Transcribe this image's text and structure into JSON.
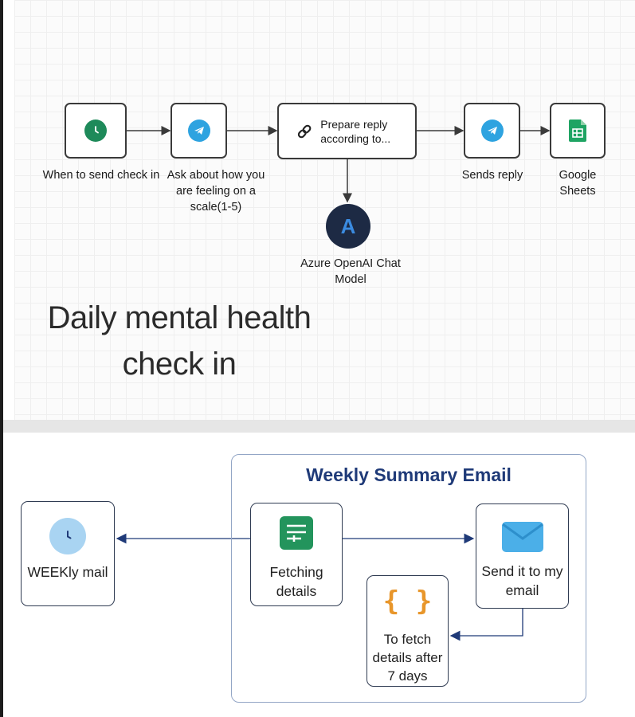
{
  "top_flow": {
    "nodes": {
      "schedule": {
        "label": "When to send check in",
        "icon": "clock-icon",
        "color": "#1e8a5a"
      },
      "ask": {
        "label": "Ask about how you are feeling on a scale(1-5)",
        "icon": "telegram-icon",
        "color": "#2ea3e0"
      },
      "prepare": {
        "label": "Prepare reply according to...",
        "icon": "link-icon"
      },
      "sends": {
        "label": "Sends reply",
        "icon": "telegram-icon",
        "color": "#2ea3e0"
      },
      "sheets": {
        "label": "Google Sheets",
        "icon": "sheets-icon",
        "color": "#1fa463"
      },
      "azure": {
        "label": "Azure OpenAI Chat Model",
        "icon": "azure-icon",
        "color": "#1d2a44",
        "glyph": "A"
      }
    },
    "title": "Daily mental health check in"
  },
  "weekly": {
    "group_title": "Weekly Summary Email",
    "nodes": {
      "weekly_mail": {
        "label": "WEEKly mail",
        "icon": "clock-icon",
        "color": "#a9d4f2"
      },
      "fetching": {
        "label": "Fetching details",
        "icon": "form-icon",
        "color": "#23945c"
      },
      "send_email": {
        "label": "Send it to my email",
        "icon": "envelope-icon",
        "color": "#4bafe8"
      },
      "fetch_after": {
        "label": "To fetch details after 7 days",
        "icon": "braces-icon",
        "color": "#e8962b",
        "glyph": "{ }"
      }
    }
  }
}
